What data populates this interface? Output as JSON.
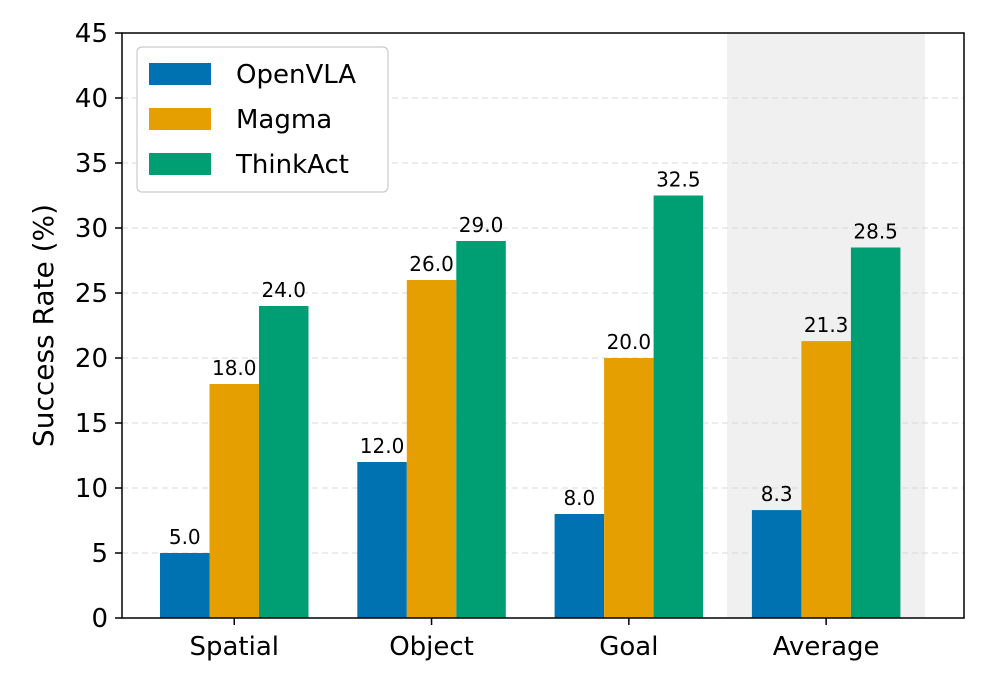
{
  "chart_data": {
    "type": "bar",
    "title": "",
    "xlabel": "",
    "ylabel": "Success Rate (%)",
    "ylim": [
      0,
      45
    ],
    "yticks": [
      0,
      5,
      10,
      15,
      20,
      25,
      30,
      35,
      40,
      45
    ],
    "grid": "horizontal dashed",
    "legend_position": "top-left",
    "categories": [
      "Spatial",
      "Object",
      "Goal",
      "Average"
    ],
    "highlighted_category": "Average",
    "series": [
      {
        "name": "OpenVLA",
        "color": "#0072B2",
        "values": [
          5.0,
          12.0,
          8.0,
          8.3
        ],
        "labels": [
          "5.0",
          "12.0",
          "8.0",
          "8.3"
        ]
      },
      {
        "name": "Magma",
        "color": "#E69F00",
        "values": [
          18.0,
          26.0,
          20.0,
          21.3
        ],
        "labels": [
          "18.0",
          "26.0",
          "20.0",
          "21.3"
        ]
      },
      {
        "name": "ThinkAct",
        "color": "#009E73",
        "values": [
          24.0,
          29.0,
          32.5,
          28.5
        ],
        "labels": [
          "24.0",
          "29.0",
          "32.5",
          "28.5"
        ]
      }
    ]
  }
}
